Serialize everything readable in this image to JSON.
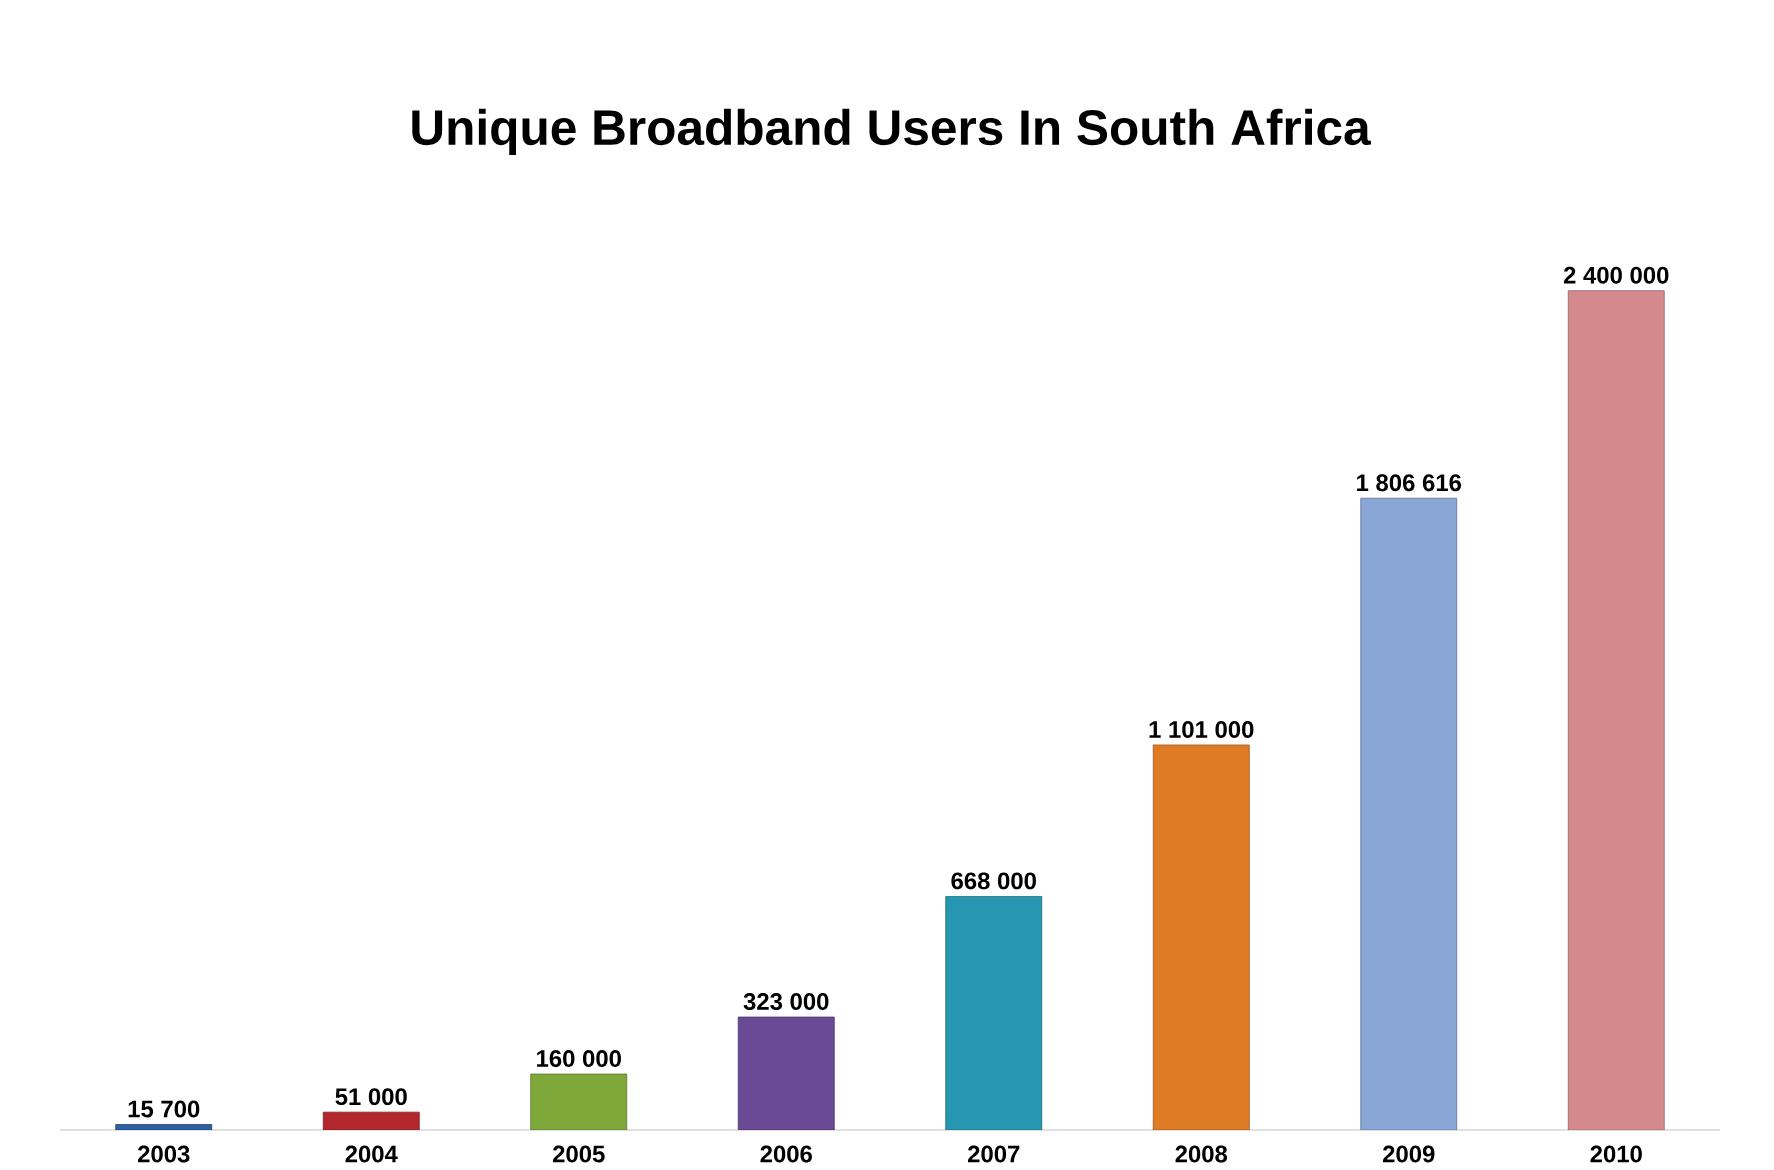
{
  "chart_data": {
    "type": "bar",
    "title": "Unique Broadband Users In South Africa",
    "categories": [
      "2003",
      "2004",
      "2005",
      "2006",
      "2007",
      "2008",
      "2009",
      "2010"
    ],
    "values": [
      15700,
      51000,
      160000,
      323000,
      668000,
      1101000,
      1806616,
      2400000
    ],
    "value_labels": [
      "15 700",
      "51 000",
      "160 000",
      "323 000",
      "668 000",
      "1 101 000",
      "1 806 616",
      "2 400 000"
    ],
    "colors": [
      "#2e5fa0",
      "#b3282d",
      "#7fa83a",
      "#6a4a94",
      "#2796b0",
      "#e07b25",
      "#8aa6d6",
      "#d48a8c"
    ]
  }
}
